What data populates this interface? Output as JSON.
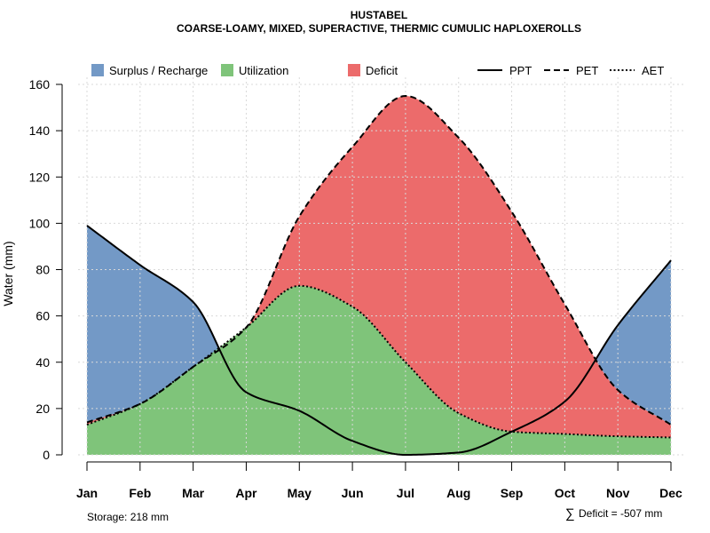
{
  "chart_data": {
    "type": "area",
    "title": "HUSTABEL",
    "subtitle": "COARSE-LOAMY, MIXED, SUPERACTIVE, THERMIC CUMULIC HAPLOXEROLLS",
    "xlabel": "",
    "ylabel": "Water (mm)",
    "categories": [
      "Jan",
      "Feb",
      "Mar",
      "Apr",
      "May",
      "Jun",
      "Jul",
      "Aug",
      "Sep",
      "Oct",
      "Nov",
      "Dec"
    ],
    "ylim": [
      0,
      160
    ],
    "yticks": [
      "0",
      "20",
      "40",
      "60",
      "80",
      "100",
      "120",
      "140",
      "160"
    ],
    "grid": true,
    "series": [
      {
        "name": "PPT",
        "values": [
          99,
          82,
          66,
          27,
          19,
          6,
          0,
          1,
          10,
          23,
          56,
          84
        ]
      },
      {
        "name": "PET",
        "values": [
          14,
          22,
          38,
          55,
          103,
          133,
          155,
          137,
          105,
          65,
          28,
          13
        ]
      },
      {
        "name": "AET",
        "values": [
          13,
          22,
          38,
          55,
          73,
          64,
          40,
          18,
          10,
          9,
          8,
          7.5
        ]
      }
    ],
    "legend": {
      "position": "top",
      "fill_items": [
        {
          "label": "Surplus / Recharge",
          "color": "#7399c6"
        },
        {
          "label": "Utilization",
          "color": "#7fc47a"
        },
        {
          "label": "Deficit",
          "color": "#ec6b6b"
        }
      ],
      "line_items": [
        {
          "label": "PPT",
          "style": "solid"
        },
        {
          "label": "PET",
          "style": "dashed"
        },
        {
          "label": "AET",
          "style": "dotted"
        }
      ]
    },
    "colors": {
      "surplus": "#7399c6",
      "utilization": "#7fc47a",
      "deficit": "#ec6b6b",
      "line": "#000000",
      "grid": "#d9d9d9"
    },
    "annotations": {
      "storage": "Storage: 218 mm",
      "deficit_symbol": "∑",
      "deficit": "Deficit = -507 mm"
    }
  }
}
